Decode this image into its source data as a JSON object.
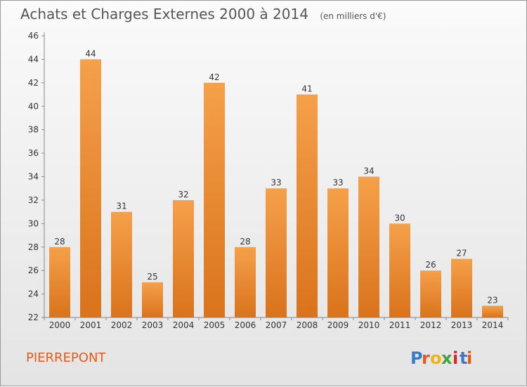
{
  "chart_data": {
    "type": "bar",
    "title": "Achats et Charges Externes 2000 à 2014",
    "subtitle": "(en milliers d'€)",
    "categories": [
      "2000",
      "2001",
      "2002",
      "2003",
      "2004",
      "2005",
      "2006",
      "2007",
      "2008",
      "2009",
      "2010",
      "2011",
      "2012",
      "2013",
      "2014"
    ],
    "values": [
      28,
      44,
      31,
      25,
      32,
      42,
      28,
      33,
      41,
      33,
      34,
      30,
      26,
      27,
      23
    ],
    "ylim": [
      22,
      46
    ],
    "yticks": [
      22,
      24,
      26,
      28,
      30,
      32,
      34,
      36,
      38,
      40,
      42,
      44,
      46
    ],
    "grid": false,
    "xlabel": "",
    "ylabel": ""
  },
  "location_label": "PIERREPONT",
  "logo": {
    "letters": [
      "P",
      "r",
      "o",
      "x",
      "i",
      "t",
      "i"
    ]
  },
  "colors": {
    "bar_top": "#f5a04a",
    "bar_bottom": "#d9731c",
    "title": "#555555",
    "location": "#e25c1d",
    "axis": "#888888",
    "logo": [
      "#3b7bc8",
      "#e8581a",
      "#f2b40a",
      "#3fa53a",
      "#d62828",
      "#3b7bc8",
      "#e8581a"
    ]
  }
}
